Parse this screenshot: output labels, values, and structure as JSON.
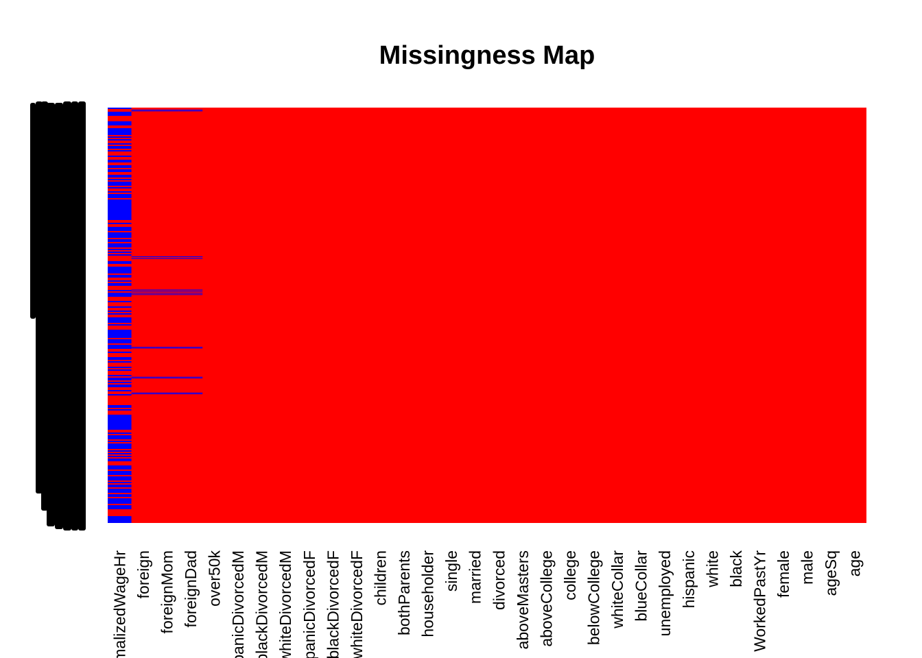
{
  "chart_data": {
    "type": "heatmap",
    "title": "Missingness Map",
    "xlabel": "",
    "ylabel": "",
    "legend": "none",
    "grid": false,
    "colors": {
      "missing": "#0000ff",
      "observed": "#ff0000",
      "row_labels": "#000000"
    },
    "variables": [
      "normalizedWageHr",
      "foreign",
      "foreignMom",
      "foreignDad",
      "over50k",
      "hispanicDivorcedM",
      "blackDivorcedM",
      "whiteDivorcedM",
      "hispanicDivorcedF",
      "blackDivorcedF",
      "whiteDivorcedF",
      "children",
      "bothParents",
      "householder",
      "single",
      "married",
      "divorced",
      "aboveMasters",
      "aboveCollege",
      "college",
      "belowCollege",
      "whiteCollar",
      "blueCollar",
      "unemployed",
      "hispanic",
      "white",
      "black",
      "WorkedPastYr",
      "female",
      "male",
      "ageSq",
      "age"
    ],
    "missing_bands": [
      {
        "vars": [
          1,
          2,
          3
        ],
        "rows": [
          0.005,
          0.009
        ]
      },
      {
        "vars": [
          1,
          2,
          3
        ],
        "rows": [
          0.358,
          0.364
        ]
      },
      {
        "vars": [
          1,
          2,
          3
        ],
        "rows": [
          0.438,
          0.443
        ]
      },
      {
        "vars": [
          1,
          2,
          3
        ],
        "rows": [
          0.446,
          0.451
        ]
      },
      {
        "vars": [
          1,
          2,
          3
        ],
        "rows": [
          0.576,
          0.58
        ]
      },
      {
        "vars": [
          1,
          2,
          3
        ],
        "rows": [
          0.648,
          0.652
        ]
      },
      {
        "vars": [
          1,
          2,
          3
        ],
        "rows": [
          0.686,
          0.69
        ]
      }
    ],
    "var0_missing_share": 0.55
  }
}
